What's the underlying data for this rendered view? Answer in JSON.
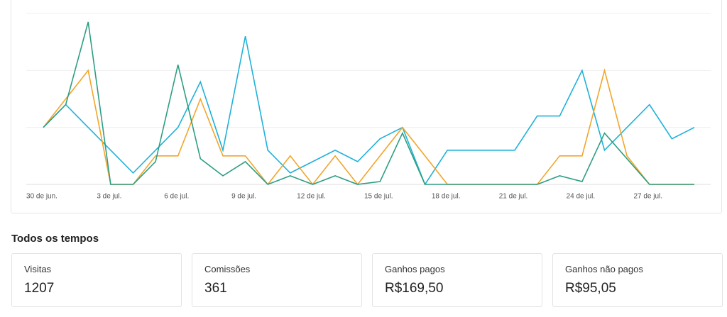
{
  "chart_data": {
    "type": "line",
    "categories": [
      "30 de jun.",
      null,
      null,
      "3 de jul.",
      null,
      null,
      "6 de jul.",
      null,
      null,
      "9 de jul.",
      null,
      null,
      "12 de jul.",
      null,
      null,
      "15 de jul.",
      null,
      null,
      "18 de jul.",
      null,
      null,
      "21 de jul.",
      null,
      null,
      "24 de jul.",
      null,
      null,
      "27 de jul.",
      null,
      null
    ],
    "series": [
      {
        "color": "#1fb1d9",
        "values": [
          1.0,
          1.4,
          1.0,
          0.6,
          0.2,
          0.6,
          1.0,
          1.8,
          0.6,
          2.6,
          0.6,
          0.2,
          0.4,
          0.6,
          0.4,
          0.8,
          1.0,
          0,
          0.6,
          0.6,
          0.6,
          0.6,
          1.2,
          1.2,
          2.0,
          0.6,
          1.0,
          1.4,
          0.8,
          1.0
        ]
      },
      {
        "color": "#f2a52a",
        "values": [
          1.0,
          1.5,
          2.0,
          0,
          0,
          0.5,
          0.5,
          1.5,
          0.5,
          0.5,
          0,
          0.5,
          0,
          0.5,
          0,
          0.5,
          1.0,
          0.5,
          0,
          0,
          0,
          0,
          0,
          0.5,
          0.5,
          2.0,
          0.5,
          0,
          0,
          0
        ]
      },
      {
        "color": "#2e9e82",
        "values": [
          1.0,
          1.4,
          2.85,
          0,
          0,
          0.4,
          2.1,
          0.45,
          0.15,
          0.4,
          0,
          0.15,
          0,
          0.15,
          0,
          0.05,
          0.9,
          0,
          0,
          0,
          0,
          0,
          0,
          0.15,
          0.05,
          0.9,
          0.45,
          0,
          0,
          0
        ]
      }
    ],
    "ylim": [
      0,
      3
    ],
    "yticks": [
      0,
      1,
      2,
      3
    ],
    "grid": true
  },
  "section": {
    "title": "Todos os tempos"
  },
  "stats": [
    {
      "label": "Visitas",
      "value": 1207
    },
    {
      "label": "Comissões",
      "value": 361
    },
    {
      "label": "Ganhos pagos",
      "value": "R$169,50"
    },
    {
      "label": "Ganhos não pagos",
      "value": "R$95,05"
    }
  ]
}
